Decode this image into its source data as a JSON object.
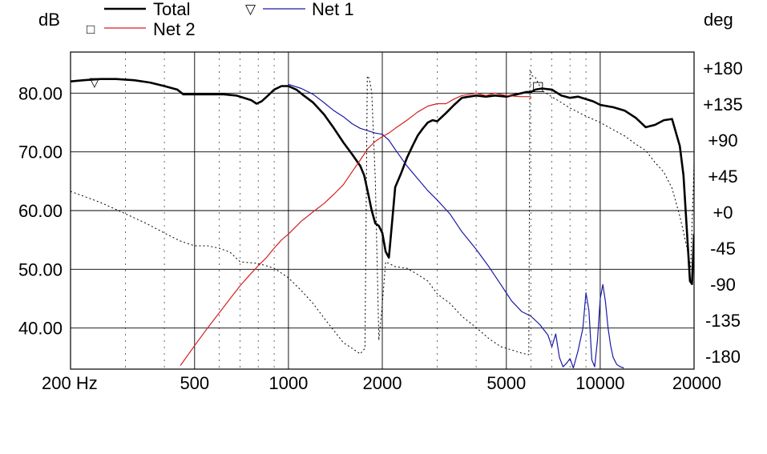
{
  "chart_data": {
    "type": "line",
    "title": "",
    "xlabel": "",
    "x_scale": "log",
    "xlim": [
      200,
      20000
    ],
    "x_ticks": [
      {
        "value": 200,
        "label": "200 Hz"
      },
      {
        "value": 500,
        "label": "500"
      },
      {
        "value": 1000,
        "label": "1000"
      },
      {
        "value": 2000,
        "label": "2000"
      },
      {
        "value": 5000,
        "label": "5000"
      },
      {
        "value": 10000,
        "label": "10000"
      },
      {
        "value": 20000,
        "label": "20000"
      }
    ],
    "y_left": {
      "unit": "dB",
      "lim": [
        33,
        87
      ],
      "ticks": [
        {
          "value": 80,
          "label": "80.00"
        },
        {
          "value": 70,
          "label": "70.00"
        },
        {
          "value": 60,
          "label": "60.00"
        },
        {
          "value": 50,
          "label": "50.00"
        },
        {
          "value": 40,
          "label": "40.00"
        }
      ]
    },
    "y_right": {
      "unit": "deg",
      "lim": [
        -196,
        200
      ],
      "ticks": [
        {
          "value": 180,
          "label": "+180"
        },
        {
          "value": 135,
          "label": "+135"
        },
        {
          "value": 90,
          "label": "+90"
        },
        {
          "value": 45,
          "label": "+45"
        },
        {
          "value": 0,
          "label": "+0"
        },
        {
          "value": -45,
          "label": "-45"
        },
        {
          "value": -90,
          "label": "-90"
        },
        {
          "value": -135,
          "label": "-135"
        },
        {
          "value": -180,
          "label": "-180"
        }
      ]
    },
    "grid": true,
    "legend": [
      {
        "name": "Total",
        "marker": "",
        "color": "#000000"
      },
      {
        "name": "Net 1",
        "marker": "▽",
        "color": "#1a1aa6"
      },
      {
        "name": "Net 2",
        "marker": "□",
        "color": "#d42020"
      }
    ],
    "series": [
      {
        "name": "Total",
        "axis": "left",
        "color": "#000000",
        "width": 2.6,
        "dash": "",
        "x": [
          200,
          220,
          250,
          280,
          320,
          360,
          400,
          440,
          460,
          500,
          560,
          620,
          680,
          720,
          760,
          790,
          820,
          860,
          900,
          950,
          1000,
          1060,
          1120,
          1200,
          1300,
          1400,
          1500,
          1600,
          1700,
          1750,
          1800,
          1850,
          1900,
          1950,
          2000,
          2050,
          2100,
          2150,
          2200,
          2300,
          2400,
          2500,
          2600,
          2700,
          2800,
          2900,
          3000,
          3200,
          3400,
          3600,
          3800,
          4000,
          4300,
          4600,
          5000,
          5400,
          5800,
          6000,
          6200,
          6500,
          7000,
          7500,
          8000,
          8500,
          9000,
          9500,
          10000,
          11000,
          12000,
          13000,
          14000,
          15000,
          16000,
          17000,
          18000,
          18500,
          19000,
          19400,
          19700,
          20000
        ],
        "y": [
          82.0,
          82.2,
          82.4,
          82.4,
          82.2,
          81.8,
          81.2,
          80.6,
          79.8,
          79.8,
          79.8,
          79.8,
          79.6,
          79.2,
          78.8,
          78.2,
          78.6,
          79.6,
          80.6,
          81.2,
          81.2,
          80.6,
          79.6,
          78.4,
          76.4,
          74.0,
          71.6,
          69.6,
          67.6,
          66.0,
          63.0,
          60.0,
          57.8,
          57.4,
          56.2,
          53.0,
          52.0,
          58.0,
          64.0,
          66.4,
          69.0,
          71.0,
          72.8,
          74.0,
          75.0,
          75.4,
          75.2,
          76.6,
          78.0,
          79.2,
          79.4,
          79.6,
          79.4,
          79.6,
          79.4,
          79.8,
          80.2,
          80.2,
          80.6,
          80.8,
          80.6,
          79.6,
          79.2,
          79.4,
          79.0,
          78.6,
          78.0,
          77.6,
          77.0,
          75.8,
          74.2,
          74.6,
          75.4,
          75.6,
          71.0,
          66.0,
          56.0,
          48.0,
          47.5,
          56.0
        ]
      },
      {
        "name": "Net 1",
        "axis": "left",
        "color": "#1a1aa6",
        "width": 1.2,
        "dash": "",
        "x": [
          1000,
          1100,
          1200,
          1300,
          1400,
          1500,
          1600,
          1700,
          1800,
          1900,
          2000,
          2100,
          2200,
          2400,
          2600,
          2800,
          3000,
          3300,
          3600,
          4000,
          4400,
          4800,
          5200,
          5600,
          6000,
          6400,
          6800,
          7000,
          7200,
          7400,
          7600,
          7800,
          8000,
          8200,
          8500,
          8800,
          9000,
          9200,
          9400,
          9600,
          9800,
          10000,
          10200,
          10400,
          10600,
          10800,
          11000,
          11300,
          11600,
          11900
        ],
        "y": [
          81.5,
          80.8,
          79.8,
          78.4,
          77.0,
          76.0,
          74.8,
          74.0,
          73.6,
          73.2,
          73.0,
          72.0,
          70.4,
          67.6,
          65.4,
          63.4,
          61.8,
          59.4,
          56.4,
          53.4,
          50.4,
          47.4,
          44.6,
          42.8,
          42.0,
          40.6,
          38.8,
          36.8,
          39.0,
          35.0,
          33.4,
          34.0,
          34.8,
          33.2,
          36.2,
          40.0,
          46.0,
          43.0,
          34.6,
          33.4,
          38.0,
          45.0,
          47.4,
          44.4,
          40.0,
          37.0,
          35.0,
          33.8,
          33.4,
          33.2
        ]
      },
      {
        "name": "Net 2",
        "axis": "left",
        "color": "#d42020",
        "width": 1.2,
        "dash": "",
        "x": [
          450,
          500,
          550,
          600,
          650,
          700,
          750,
          800,
          850,
          900,
          950,
          1000,
          1100,
          1200,
          1300,
          1400,
          1500,
          1600,
          1700,
          1800,
          1900,
          2000,
          2100,
          2200,
          2400,
          2600,
          2800,
          3000,
          3200,
          3400,
          3600,
          3800,
          4000,
          4300,
          4600,
          5000,
          5500,
          6000
        ],
        "y": [
          33.6,
          37.0,
          40.0,
          42.6,
          45.0,
          47.2,
          49.0,
          50.6,
          52.0,
          53.6,
          55.0,
          56.0,
          58.2,
          59.8,
          61.2,
          62.8,
          64.4,
          66.6,
          68.6,
          70.6,
          71.8,
          72.6,
          73.2,
          74.0,
          75.4,
          76.8,
          77.8,
          78.2,
          78.2,
          79.0,
          79.6,
          79.8,
          80.0,
          79.6,
          80.0,
          79.6,
          79.4,
          79.4
        ]
      },
      {
        "name": "Phase",
        "axis": "right",
        "color": "#000000",
        "width": 1.0,
        "dash": "2,3",
        "x": [
          200,
          250,
          300,
          350,
          400,
          450,
          500,
          550,
          600,
          650,
          700,
          800,
          900,
          1000,
          1100,
          1200,
          1300,
          1400,
          1500,
          1600,
          1700,
          1760,
          1790,
          1800,
          1820,
          1850,
          1900,
          1950,
          2000,
          2050,
          2100,
          2200,
          2400,
          2600,
          2800,
          3000,
          3300,
          3600,
          4000,
          4400,
          4800,
          5200,
          5600,
          5900,
          5950,
          6000,
          6050,
          6100,
          6200,
          6500,
          7000,
          7500,
          8000,
          9000,
          10000,
          11000,
          12000,
          13000,
          14000,
          15000,
          16000,
          17000,
          18000,
          18500,
          19000,
          19500,
          20000
        ],
        "y": [
          26,
          12,
          -2,
          -14,
          -26,
          -36,
          -42,
          -42,
          -45,
          -50,
          -62,
          -64,
          -70,
          -82,
          -98,
          -114,
          -132,
          -148,
          -163,
          -170,
          -177,
          -170,
          170,
          170,
          165,
          150,
          40,
          -160,
          -115,
          -62,
          -64,
          -68,
          -70,
          -78,
          -86,
          -102,
          -114,
          -130,
          -144,
          -158,
          -168,
          -172,
          -176,
          -178,
          178,
          175,
          170,
          170,
          168,
          152,
          144,
          137,
          130,
          120,
          112,
          103,
          95,
          85,
          77,
          62,
          50,
          30,
          -5,
          -25,
          -45,
          -70,
          60
        ]
      }
    ],
    "annotations": [
      {
        "type": "marker",
        "series": "Net 1",
        "symbol": "▽",
        "x": 240,
        "y": 82.1
      },
      {
        "type": "marker",
        "series": "Net 2",
        "symbol": "□",
        "x": 6300,
        "y": 81.4
      }
    ]
  }
}
